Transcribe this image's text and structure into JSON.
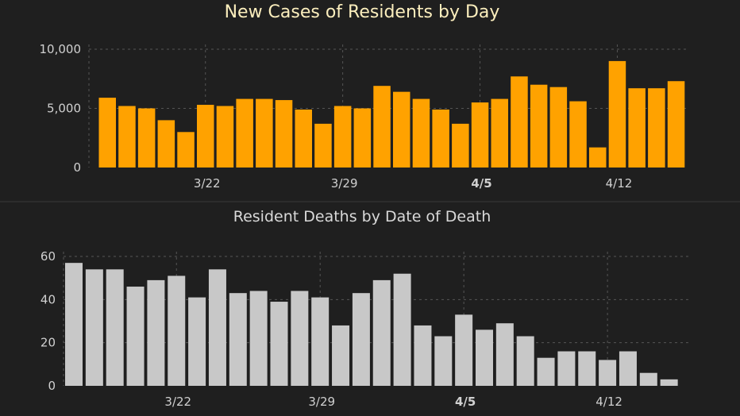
{
  "colors": {
    "background": "#1f1f1f",
    "cases_bar": "#ffa200",
    "deaths_bar": "#c8c8c8",
    "title_cases": "#fbeebd",
    "title_deaths": "#d9d9d9",
    "axis_text": "#d0d0d0",
    "grid": "#555555",
    "divider": "#3a3a3a"
  },
  "chart_data": [
    {
      "type": "bar",
      "title": "New Cases of Residents by Day",
      "xlabel": "",
      "ylabel": "",
      "ylim": [
        0,
        10000
      ],
      "y_ticks": [
        0,
        5000,
        10000
      ],
      "y_tick_labels": [
        "0",
        "5,000",
        "10,000"
      ],
      "x_tick_labels": [
        "3/22",
        "3/29",
        "4/5",
        "4/12"
      ],
      "x_tick_bar_index": [
        5,
        12,
        19,
        26
      ],
      "grid": true,
      "values": [
        5900,
        5200,
        5000,
        4000,
        3000,
        5300,
        5200,
        5800,
        5800,
        5700,
        4900,
        3700,
        5200,
        5000,
        6900,
        6400,
        5800,
        4900,
        3700,
        5500,
        5800,
        7700,
        7000,
        6800,
        5600,
        1700,
        9000,
        6700,
        6700,
        7300
      ]
    },
    {
      "type": "bar",
      "title": "Resident Deaths by Date of Death",
      "xlabel": "",
      "ylabel": "",
      "ylim": [
        0,
        60
      ],
      "y_ticks": [
        0,
        20,
        40,
        60
      ],
      "y_tick_labels": [
        "0",
        "20",
        "40",
        "60"
      ],
      "x_tick_labels": [
        "3/22",
        "3/29",
        "4/5",
        "4/12"
      ],
      "x_tick_bar_index": [
        5,
        12,
        19,
        26
      ],
      "grid": true,
      "values": [
        57,
        54,
        54,
        46,
        49,
        51,
        41,
        54,
        43,
        44,
        39,
        44,
        41,
        28,
        43,
        49,
        52,
        28,
        23,
        33,
        26,
        29,
        23,
        13,
        16,
        16,
        12,
        16,
        6,
        3
      ]
    }
  ]
}
